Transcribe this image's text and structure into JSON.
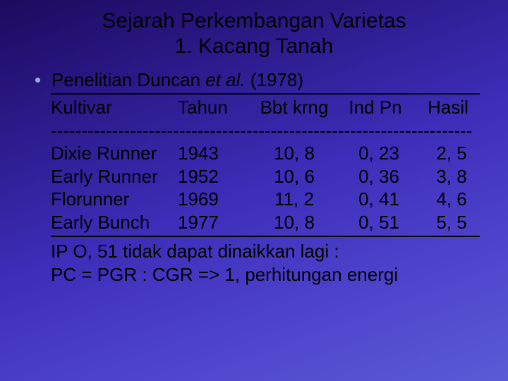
{
  "title_line1": "Sejarah Perkembangan Varietas",
  "title_line2": "1. Kacang Tanah",
  "bullet_prefix": "Penelitian Duncan ",
  "bullet_italic": "et al.",
  "bullet_suffix": " (1978)",
  "headers": {
    "kultivar": "Kultivar",
    "tahun": "Tahun",
    "bbt": "Bbt krng",
    "ind": "Ind Pn",
    "hasil": "Hasil"
  },
  "dash_line": "---------------------------------------------------------------------",
  "rows": [
    {
      "kultivar": "Dixie Runner",
      "tahun": "1943",
      "bbt": "10, 8",
      "ind": "0, 23",
      "hasil": "2, 5"
    },
    {
      "kultivar": "Early Runner",
      "tahun": "1952",
      "bbt": "10, 6",
      "ind": "0, 36",
      "hasil": "3, 8"
    },
    {
      "kultivar": "Florunner",
      "tahun": "1969",
      "bbt": "11, 2",
      "ind": "0, 41",
      "hasil": "4, 6"
    },
    {
      "kultivar": "Early Bunch",
      "tahun": "1977",
      "bbt": "10, 8",
      "ind": "0, 51",
      "hasil": "5, 5"
    }
  ],
  "footer1": "IP O, 51 tidak dapat dinaikkan lagi :",
  "footer2": "PC = PGR : CGR => 1, perhitungan energi"
}
